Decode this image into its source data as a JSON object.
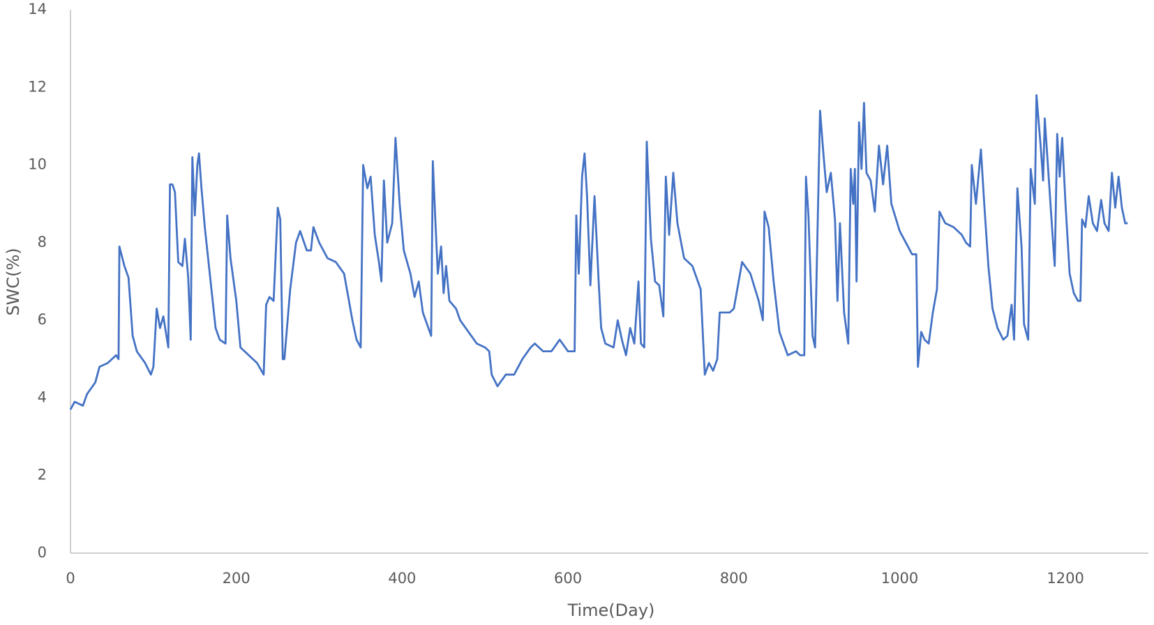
{
  "chart_data": {
    "type": "line",
    "x_label": "Time(Day)",
    "y_label": "SWC(%)",
    "xlim": [
      0,
      1300
    ],
    "xticks": [
      0,
      200,
      400,
      600,
      800,
      1000,
      1200
    ],
    "ylim": [
      0,
      14
    ],
    "yticks": [
      0,
      2,
      4,
      6,
      8,
      10,
      12,
      14
    ],
    "grid": false,
    "x": [
      0,
      5,
      15,
      20,
      30,
      35,
      45,
      55,
      58,
      59,
      65,
      70,
      75,
      80,
      90,
      97,
      100,
      104,
      108,
      112,
      118,
      120,
      123,
      126,
      130,
      135,
      138,
      142,
      145,
      147,
      150,
      153,
      155,
      158,
      162,
      168,
      175,
      180,
      187,
      189,
      193,
      200,
      205,
      215,
      225,
      233,
      236,
      240,
      245,
      250,
      253,
      256,
      258,
      265,
      272,
      277,
      285,
      290,
      293,
      300,
      310,
      320,
      330,
      335,
      340,
      345,
      350,
      353,
      358,
      362,
      367,
      372,
      375,
      378,
      382,
      388,
      392,
      397,
      402,
      410,
      415,
      420,
      425,
      430,
      435,
      437,
      440,
      443,
      447,
      450,
      453,
      457,
      465,
      470,
      480,
      490,
      500,
      505,
      508,
      515,
      525,
      535,
      545,
      555,
      560,
      570,
      580,
      590,
      600,
      608,
      610,
      613,
      617,
      620,
      623,
      627,
      632,
      637,
      640,
      645,
      655,
      660,
      665,
      670,
      675,
      680,
      685,
      688,
      692,
      695,
      700,
      705,
      710,
      715,
      718,
      722,
      727,
      732,
      740,
      750,
      760,
      765,
      770,
      775,
      780,
      783,
      795,
      800,
      810,
      820,
      830,
      835,
      837,
      842,
      848,
      855,
      865,
      875,
      880,
      885,
      887,
      890,
      895,
      898,
      904,
      908,
      912,
      917,
      922,
      925,
      928,
      933,
      938,
      941,
      944,
      946,
      948,
      951,
      954,
      957,
      960,
      965,
      970,
      975,
      980,
      985,
      990,
      1000,
      1010,
      1015,
      1020,
      1022,
      1026,
      1030,
      1035,
      1040,
      1045,
      1048,
      1055,
      1065,
      1075,
      1080,
      1085,
      1087,
      1092,
      1098,
      1102,
      1107,
      1112,
      1118,
      1125,
      1130,
      1135,
      1138,
      1142,
      1147,
      1150,
      1155,
      1158,
      1163,
      1165,
      1170,
      1173,
      1175,
      1180,
      1185,
      1187,
      1190,
      1193,
      1196,
      1200,
      1205,
      1210,
      1215,
      1218,
      1220,
      1224,
      1228,
      1233,
      1238,
      1243,
      1247,
      1252,
      1256,
      1260,
      1264,
      1268,
      1272,
      1275
    ],
    "series": [
      {
        "color": "#4472c4",
        "values": [
          3.7,
          3.9,
          3.8,
          4.1,
          4.4,
          4.8,
          4.9,
          5.1,
          5.0,
          7.9,
          7.4,
          7.1,
          5.6,
          5.2,
          4.9,
          4.6,
          4.8,
          6.3,
          5.8,
          6.1,
          5.3,
          9.5,
          9.5,
          9.3,
          7.5,
          7.4,
          8.1,
          7.1,
          5.5,
          10.2,
          8.7,
          10.0,
          10.3,
          9.4,
          8.4,
          7.2,
          5.8,
          5.5,
          5.4,
          8.7,
          7.6,
          6.5,
          5.3,
          5.1,
          4.9,
          4.6,
          6.4,
          6.6,
          6.5,
          8.9,
          8.6,
          5.0,
          5.0,
          6.8,
          8.0,
          8.3,
          7.8,
          7.8,
          8.4,
          8.0,
          7.6,
          7.5,
          7.2,
          6.6,
          6.0,
          5.5,
          5.3,
          10.0,
          9.4,
          9.7,
          8.2,
          7.5,
          7.0,
          9.6,
          8.0,
          8.5,
          10.7,
          9.0,
          7.8,
          7.2,
          6.6,
          7.0,
          6.2,
          5.9,
          5.6,
          10.1,
          8.6,
          7.2,
          7.9,
          6.7,
          7.4,
          6.5,
          6.3,
          6.0,
          5.7,
          5.4,
          5.3,
          5.2,
          4.6,
          4.3,
          4.6,
          4.6,
          5.0,
          5.3,
          5.4,
          5.2,
          5.2,
          5.5,
          5.2,
          5.2,
          8.7,
          7.2,
          9.7,
          10.3,
          9.2,
          6.9,
          9.2,
          7.0,
          5.8,
          5.4,
          5.3,
          6.0,
          5.5,
          5.1,
          5.8,
          5.4,
          7.0,
          5.4,
          5.3,
          10.6,
          8.1,
          7.0,
          6.9,
          6.1,
          9.7,
          8.2,
          9.8,
          8.5,
          7.6,
          7.4,
          6.8,
          4.6,
          4.9,
          4.7,
          5.0,
          6.2,
          6.2,
          6.3,
          7.5,
          7.2,
          6.5,
          6.0,
          8.8,
          8.4,
          7.0,
          5.7,
          5.1,
          5.2,
          5.1,
          5.1,
          9.7,
          8.7,
          5.6,
          5.3,
          11.4,
          10.3,
          9.3,
          9.8,
          8.6,
          6.5,
          8.5,
          6.2,
          5.4,
          9.9,
          9.0,
          9.9,
          7.0,
          11.1,
          9.9,
          11.6,
          9.8,
          9.6,
          8.8,
          10.5,
          9.5,
          10.5,
          9.0,
          8.3,
          7.9,
          7.7,
          7.7,
          4.8,
          5.7,
          5.5,
          5.4,
          6.2,
          6.8,
          8.8,
          8.5,
          8.4,
          8.2,
          8.0,
          7.9,
          10.0,
          9.0,
          10.4,
          9.0,
          7.4,
          6.3,
          5.8,
          5.5,
          5.6,
          6.4,
          5.5,
          9.4,
          7.9,
          5.9,
          5.5,
          9.9,
          9.0,
          11.8,
          10.5,
          9.6,
          11.2,
          9.6,
          8.0,
          7.4,
          10.8,
          9.7,
          10.7,
          9.0,
          7.2,
          6.7,
          6.5,
          6.5,
          8.6,
          8.4,
          9.2,
          8.5,
          8.3,
          9.1,
          8.5,
          8.3,
          9.8,
          8.9,
          9.7,
          8.9,
          8.5,
          8.5
        ]
      }
    ]
  }
}
